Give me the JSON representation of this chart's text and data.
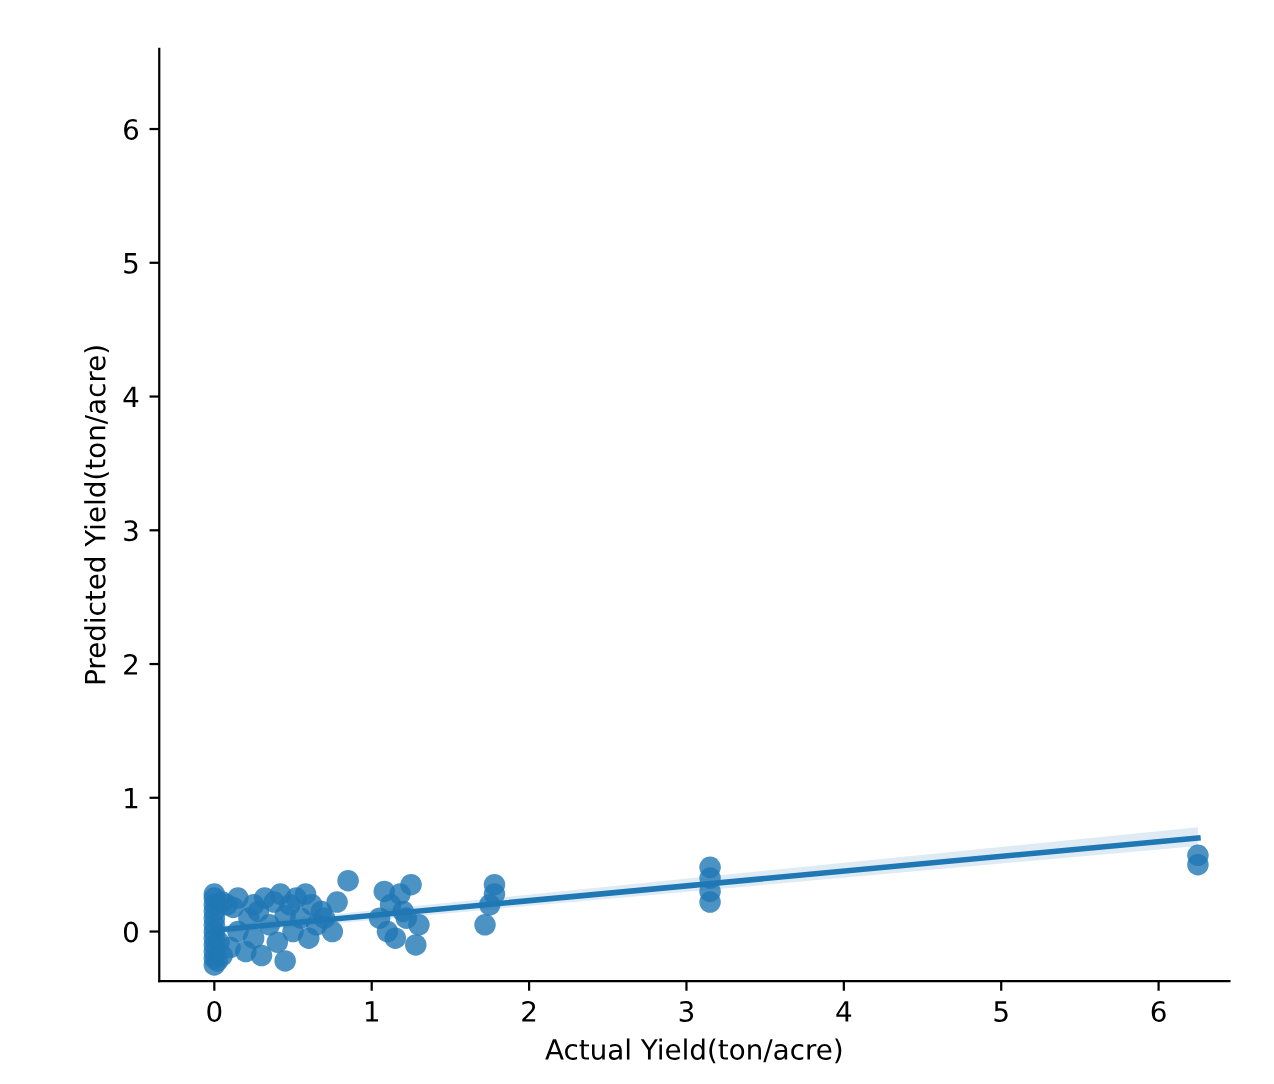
{
  "chart_data": {
    "type": "scatter",
    "xlabel": "Actual Yield(ton/acre)",
    "ylabel": "Predicted Yield(ton/acre)",
    "xlim": [
      -0.35,
      6.45
    ],
    "ylim": [
      -0.37,
      6.6
    ],
    "xticks": [
      0,
      1,
      2,
      3,
      4,
      5,
      6
    ],
    "yticks": [
      0,
      1,
      2,
      3,
      4,
      5,
      6
    ],
    "grid": false,
    "series": [
      {
        "marker": "circle",
        "color": "#1f77b4",
        "x": [
          0,
          0,
          0,
          0,
          0,
          0,
          0,
          0,
          0,
          0,
          0,
          0,
          0.02,
          0.03,
          0.05,
          0.05,
          0.08,
          0.1,
          0.12,
          0.15,
          0.15,
          0.2,
          0.22,
          0.25,
          0.25,
          0.28,
          0.3,
          0.32,
          0.35,
          0.38,
          0.4,
          0.42,
          0.45,
          0.45,
          0.48,
          0.5,
          0.52,
          0.55,
          0.58,
          0.6,
          0.62,
          0.65,
          0.68,
          0.7,
          0.75,
          0.78,
          0.85,
          1.05,
          1.08,
          1.1,
          1.12,
          1.15,
          1.18,
          1.2,
          1.22,
          1.25,
          1.28,
          1.3,
          1.72,
          1.75,
          1.78,
          1.78,
          3.15,
          3.15,
          3.15,
          3.15,
          6.25,
          6.25
        ],
        "values": [
          -0.25,
          -0.2,
          -0.15,
          -0.1,
          -0.05,
          0,
          0.05,
          0.1,
          0.15,
          0.2,
          0.25,
          0.28,
          -0.22,
          -0.08,
          -0.18,
          0.22,
          0.2,
          -0.12,
          0.18,
          0.0,
          0.25,
          -0.15,
          0.1,
          0.2,
          -0.05,
          0.15,
          -0.18,
          0.25,
          0.05,
          0.22,
          -0.08,
          0.28,
          0.12,
          -0.22,
          0.2,
          0.0,
          0.25,
          0.1,
          0.28,
          -0.05,
          0.2,
          0.05,
          0.15,
          0.1,
          0.0,
          0.22,
          0.38,
          0.1,
          0.3,
          0.0,
          0.2,
          -0.05,
          0.28,
          0.15,
          0.1,
          0.35,
          -0.1,
          0.05,
          0.05,
          0.2,
          0.35,
          0.28,
          0.22,
          0.3,
          0.4,
          0.48,
          0.5,
          0.57
        ]
      },
      {
        "type": "line",
        "marker": "none",
        "color": "#1f77b4",
        "x": [
          0,
          6.25
        ],
        "values": [
          0.01,
          0.7
        ],
        "lower": [
          -0.02,
          0.64
        ],
        "upper": [
          0.04,
          0.78
        ]
      }
    ]
  }
}
